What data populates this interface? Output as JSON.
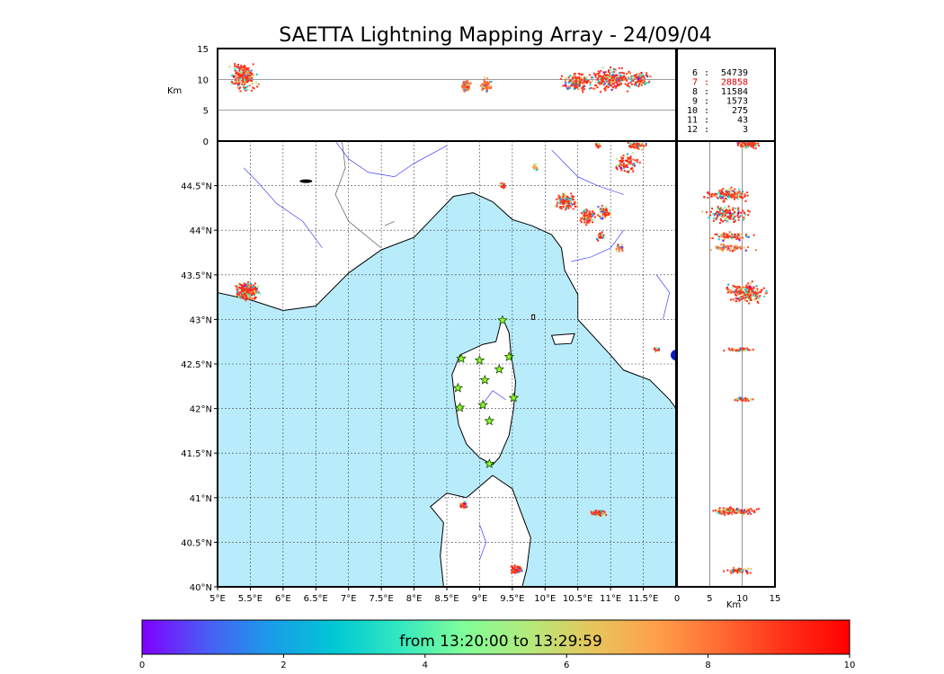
{
  "title": "SAETTA Lightning Mapping Array - 24/09/04",
  "colorbar": {
    "label": "from 13:20:00 to 13:29:59",
    "min": 0,
    "max": 10,
    "ticks": [
      "0",
      "2",
      "4",
      "6",
      "8",
      "10"
    ],
    "colors": [
      "#7f00ff",
      "#4a5cf6",
      "#1a9ce9",
      "#00c8d4",
      "#33e8c0",
      "#80fe99",
      "#b3ea7c",
      "#e6c65c",
      "#ffa04a",
      "#ff6a33",
      "#ff3018",
      "#ff0000"
    ]
  },
  "altitude_panel": {
    "ylabel": "Km",
    "yticks": [
      "15",
      "10",
      "5",
      "0"
    ],
    "yrange": [
      0,
      15
    ]
  },
  "side_panel": {
    "xlabel": "Km",
    "xticks": [
      "0",
      "5",
      "10",
      "15"
    ],
    "xrange": [
      0,
      15
    ]
  },
  "map": {
    "lon_range": [
      5,
      12
    ],
    "lat_range": [
      40,
      45
    ],
    "lon_ticks": [
      "5°E",
      "5.5°E",
      "6°E",
      "6.5°E",
      "7°E",
      "7.5°E",
      "8°E",
      "8.5°E",
      "9°E",
      "9.5°E",
      "10°E",
      "10.5°E",
      "11°E",
      "11.5°E"
    ],
    "lat_ticks": [
      "40°N",
      "40.5°N",
      "41°N",
      "41.5°N",
      "42°N",
      "42.5°N",
      "43°N",
      "43.5°N",
      "44°N",
      "44.5°N"
    ],
    "sea_color": "#b8ecfa",
    "station_color": "#8cfa2a",
    "stations": [
      {
        "lon": 9.35,
        "lat": 42.99
      },
      {
        "lon": 8.72,
        "lat": 42.56
      },
      {
        "lon": 9.0,
        "lat": 42.54
      },
      {
        "lon": 9.45,
        "lat": 42.58
      },
      {
        "lon": 9.3,
        "lat": 42.44
      },
      {
        "lon": 9.08,
        "lat": 42.32
      },
      {
        "lon": 8.67,
        "lat": 42.23
      },
      {
        "lon": 9.52,
        "lat": 42.12
      },
      {
        "lon": 9.05,
        "lat": 42.04
      },
      {
        "lon": 8.7,
        "lat": 42.01
      },
      {
        "lon": 9.15,
        "lat": 41.86
      },
      {
        "lon": 9.15,
        "lat": 41.38
      }
    ],
    "storms": [
      {
        "lon": 5.45,
        "lat": 43.32,
        "rlon": 0.22,
        "rlat": 0.12,
        "n": 260,
        "t": 9
      },
      {
        "lon": 9.35,
        "lat": 44.5,
        "rlon": 0.05,
        "rlat": 0.05,
        "n": 25,
        "t": 9
      },
      {
        "lon": 10.3,
        "lat": 44.32,
        "rlon": 0.22,
        "rlat": 0.12,
        "n": 120,
        "t": 9
      },
      {
        "lon": 10.65,
        "lat": 44.15,
        "rlon": 0.15,
        "rlat": 0.1,
        "n": 80,
        "t": 9
      },
      {
        "lon": 11.25,
        "lat": 44.75,
        "rlon": 0.22,
        "rlat": 0.15,
        "n": 90,
        "t": 9
      },
      {
        "lon": 11.4,
        "lat": 44.95,
        "rlon": 0.2,
        "rlat": 0.06,
        "n": 60,
        "t": 9
      },
      {
        "lon": 10.9,
        "lat": 44.2,
        "rlon": 0.12,
        "rlat": 0.1,
        "n": 60,
        "t": 9
      },
      {
        "lon": 10.85,
        "lat": 43.93,
        "rlon": 0.1,
        "rlat": 0.06,
        "n": 30,
        "t": 9
      },
      {
        "lon": 11.15,
        "lat": 43.8,
        "rlon": 0.08,
        "rlat": 0.05,
        "n": 25,
        "t": 8
      },
      {
        "lon": 10.8,
        "lat": 44.95,
        "rlon": 0.06,
        "rlat": 0.04,
        "n": 20,
        "t": 9
      },
      {
        "lon": 9.85,
        "lat": 44.7,
        "rlon": 0.05,
        "rlat": 0.05,
        "n": 15,
        "t": 7
      },
      {
        "lon": 8.76,
        "lat": 40.92,
        "rlon": 0.08,
        "rlat": 0.05,
        "n": 40,
        "t": 9
      },
      {
        "lon": 10.82,
        "lat": 40.83,
        "rlon": 0.15,
        "rlat": 0.05,
        "n": 60,
        "t": 9
      },
      {
        "lon": 9.55,
        "lat": 40.19,
        "rlon": 0.15,
        "rlat": 0.07,
        "n": 60,
        "t": 9
      },
      {
        "lon": 11.7,
        "lat": 42.66,
        "rlon": 0.05,
        "rlat": 0.03,
        "n": 15,
        "t": 9
      }
    ],
    "altitude_clusters": [
      {
        "lon": 5.4,
        "alt": 10.5,
        "rlon": 0.25,
        "ralt": 2.8,
        "n": 220,
        "t": 9
      },
      {
        "lon": 8.8,
        "alt": 9.0,
        "rlon": 0.1,
        "ralt": 1.3,
        "n": 60,
        "t": 8
      },
      {
        "lon": 9.1,
        "alt": 9.0,
        "rlon": 0.1,
        "ralt": 1.5,
        "n": 60,
        "t": 8
      },
      {
        "lon": 10.5,
        "alt": 9.5,
        "rlon": 0.3,
        "ralt": 2.0,
        "n": 160,
        "t": 9
      },
      {
        "lon": 11.0,
        "alt": 10.0,
        "rlon": 0.4,
        "ralt": 2.2,
        "n": 240,
        "t": 9
      },
      {
        "lon": 11.45,
        "alt": 10.0,
        "rlon": 0.2,
        "ralt": 1.5,
        "n": 90,
        "t": 9
      }
    ],
    "side_clusters": [
      {
        "lat": 44.97,
        "alt": 11.0,
        "rlat": 0.08,
        "ralt": 3.0,
        "n": 100,
        "t": 9
      },
      {
        "lat": 44.4,
        "alt": 8.0,
        "rlat": 0.1,
        "ralt": 4.5,
        "n": 140,
        "t": 9
      },
      {
        "lat": 44.18,
        "alt": 8.0,
        "rlat": 0.12,
        "ralt": 4.5,
        "n": 140,
        "t": 9
      },
      {
        "lat": 43.93,
        "alt": 8.0,
        "rlat": 0.06,
        "ralt": 4.0,
        "n": 70,
        "t": 9
      },
      {
        "lat": 43.8,
        "alt": 8.0,
        "rlat": 0.05,
        "ralt": 4.5,
        "n": 60,
        "t": 8
      },
      {
        "lat": 43.3,
        "alt": 10.5,
        "rlat": 0.14,
        "ralt": 4.0,
        "n": 200,
        "t": 9
      },
      {
        "lat": 42.66,
        "alt": 10.0,
        "rlat": 0.03,
        "ralt": 3.0,
        "n": 40,
        "t": 9
      },
      {
        "lat": 42.1,
        "alt": 10.0,
        "rlat": 0.03,
        "ralt": 2.0,
        "n": 30,
        "t": 9
      },
      {
        "lat": 40.85,
        "alt": 9.0,
        "rlat": 0.06,
        "ralt": 4.5,
        "n": 130,
        "t": 9
      },
      {
        "lat": 40.18,
        "alt": 9.5,
        "rlat": 0.04,
        "ralt": 3.0,
        "n": 60,
        "t": 9
      }
    ]
  },
  "stats": [
    {
      "k": "6",
      "v": "54739",
      "color": "#000000"
    },
    {
      "k": "7",
      "v": "28858",
      "color": "#dd0000"
    },
    {
      "k": "8",
      "v": "11584",
      "color": "#000000"
    },
    {
      "k": "9",
      "v": "1573",
      "color": "#000000"
    },
    {
      "k": "10",
      "v": "275",
      "color": "#000000"
    },
    {
      "k": "11",
      "v": "43",
      "color": "#000000"
    },
    {
      "k": "12",
      "v": "3",
      "color": "#000000"
    }
  ]
}
